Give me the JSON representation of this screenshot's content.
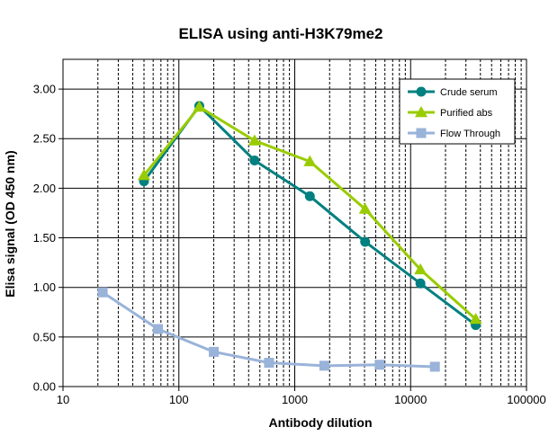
{
  "chart_data": {
    "type": "line",
    "title": "ELISA using anti-H3K79me2",
    "xlabel": "Antibody dilution",
    "ylabel": "Elisa signal (OD 450 nm)",
    "x_scale": "log",
    "xlim": [
      10,
      100000
    ],
    "ylim": [
      0,
      3.3
    ],
    "x_ticks": [
      10,
      100,
      1000,
      10000,
      100000
    ],
    "x_tick_labels": [
      "10",
      "100",
      "1000",
      "10000",
      "100000"
    ],
    "y_ticks": [
      0,
      0.5,
      1.0,
      1.5,
      2.0,
      2.5,
      3.0
    ],
    "y_tick_labels": [
      "0.00",
      "0.50",
      "1.00",
      "1.50",
      "2.00",
      "2.50",
      "3.00"
    ],
    "grid": true,
    "legend_position": "top-right",
    "series": [
      {
        "name": "Crude serum",
        "color": "#008080",
        "marker": "circle",
        "x": [
          50,
          150,
          450,
          1350,
          4050,
          12150,
          36450
        ],
        "y": [
          2.07,
          2.83,
          2.28,
          1.92,
          1.46,
          1.04,
          0.62
        ]
      },
      {
        "name": "Purified abs",
        "color": "#99CC00",
        "marker": "triangle",
        "x": [
          50,
          150,
          450,
          1350,
          4050,
          12150,
          36450
        ],
        "y": [
          2.13,
          2.82,
          2.48,
          2.27,
          1.79,
          1.18,
          0.68
        ]
      },
      {
        "name": "Flow Through",
        "color": "#99B3D9",
        "marker": "square",
        "x": [
          22,
          66,
          200,
          600,
          1800,
          5400,
          16200
        ],
        "y": [
          0.95,
          0.58,
          0.35,
          0.24,
          0.21,
          0.22,
          0.2
        ]
      }
    ]
  }
}
